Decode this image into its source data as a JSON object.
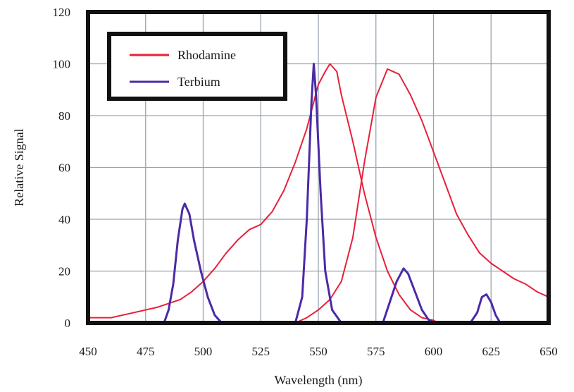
{
  "chart_data": {
    "type": "line",
    "title": "",
    "xlabel": "Wavelength (nm)",
    "ylabel": "Relative Signal",
    "xlim": [
      450,
      650
    ],
    "ylim": [
      0,
      120
    ],
    "x_ticks": [
      450,
      475,
      500,
      525,
      550,
      575,
      600,
      625,
      650
    ],
    "y_ticks": [
      0,
      20,
      40,
      60,
      80,
      100,
      120
    ],
    "x_tick_labels": [
      "450",
      "475",
      "500",
      "525",
      "550",
      "575",
      "600",
      "625",
      "650"
    ],
    "y_tick_labels": [
      "0",
      "20",
      "40",
      "60",
      "80",
      "100",
      "120"
    ],
    "grid": true,
    "legend_position": "top-left",
    "series": [
      {
        "name": "Rhodamine",
        "color": "#e8203a",
        "points": [
          [
            450,
            2
          ],
          [
            460,
            2
          ],
          [
            470,
            4
          ],
          [
            480,
            6
          ],
          [
            490,
            9
          ],
          [
            495,
            12
          ],
          [
            500,
            16
          ],
          [
            505,
            21
          ],
          [
            510,
            27
          ],
          [
            515,
            32
          ],
          [
            520,
            36
          ],
          [
            525,
            38
          ],
          [
            530,
            43
          ],
          [
            535,
            51
          ],
          [
            540,
            62
          ],
          [
            545,
            75
          ],
          [
            550,
            92
          ],
          [
            553,
            97
          ],
          [
            555,
            100
          ],
          [
            558,
            97
          ],
          [
            560,
            88
          ],
          [
            565,
            70
          ],
          [
            570,
            50
          ],
          [
            575,
            33
          ],
          [
            580,
            20
          ],
          [
            585,
            11
          ],
          [
            590,
            5
          ],
          [
            595,
            2
          ],
          [
            600,
            1
          ],
          [
            602,
            0
          ],
          [
            540,
            0
          ],
          [
            545,
            2
          ],
          [
            550,
            5
          ],
          [
            555,
            9
          ],
          [
            560,
            16
          ],
          [
            565,
            33
          ],
          [
            570,
            62
          ],
          [
            575,
            87
          ],
          [
            580,
            98
          ],
          [
            585,
            96
          ],
          [
            590,
            88
          ],
          [
            595,
            78
          ],
          [
            600,
            66
          ],
          [
            605,
            54
          ],
          [
            610,
            42
          ],
          [
            615,
            34
          ],
          [
            620,
            27
          ],
          [
            625,
            23
          ],
          [
            630,
            20
          ],
          [
            635,
            17
          ],
          [
            640,
            15
          ],
          [
            645,
            12
          ],
          [
            650,
            10
          ]
        ],
        "segments": [
          [
            0,
            29
          ],
          [
            30,
            52
          ]
        ]
      },
      {
        "name": "Terbium",
        "color": "#4b2aa6",
        "points": [
          [
            450,
            0
          ],
          [
            483,
            0
          ],
          [
            485,
            5
          ],
          [
            487,
            15
          ],
          [
            489,
            32
          ],
          [
            491,
            44
          ],
          [
            492,
            46
          ],
          [
            494,
            42
          ],
          [
            496,
            32
          ],
          [
            499,
            20
          ],
          [
            502,
            10
          ],
          [
            505,
            3
          ],
          [
            508,
            0
          ],
          [
            540,
            0
          ],
          [
            543,
            10
          ],
          [
            545,
            40
          ],
          [
            547,
            85
          ],
          [
            548,
            100
          ],
          [
            549,
            88
          ],
          [
            551,
            50
          ],
          [
            553,
            20
          ],
          [
            556,
            5
          ],
          [
            560,
            0
          ],
          [
            578,
            0
          ],
          [
            581,
            8
          ],
          [
            584,
            16
          ],
          [
            587,
            21
          ],
          [
            589,
            19
          ],
          [
            592,
            12
          ],
          [
            595,
            5
          ],
          [
            598,
            1
          ],
          [
            601,
            0
          ],
          [
            616,
            0
          ],
          [
            619,
            4
          ],
          [
            621,
            10
          ],
          [
            623,
            11
          ],
          [
            625,
            8
          ],
          [
            627,
            3
          ],
          [
            629,
            0
          ],
          [
            650,
            0
          ]
        ],
        "segments": [
          [
            0,
            39
          ]
        ]
      }
    ]
  }
}
